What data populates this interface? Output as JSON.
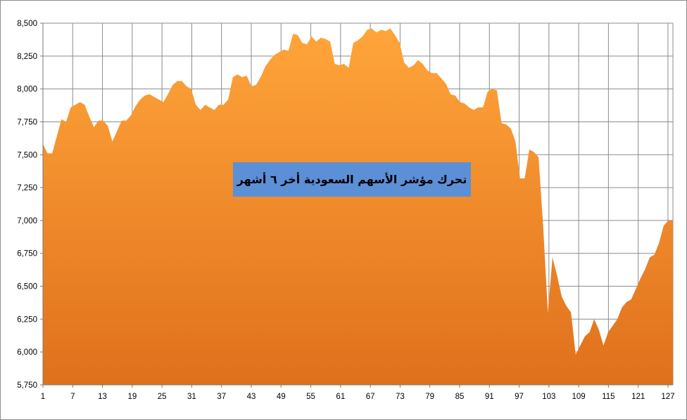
{
  "chart_data": {
    "type": "area",
    "title": "تحرك مؤشر الأسهم السعودية أخر ٦ أشهر",
    "xlabel": "",
    "ylabel": "",
    "ylim": [
      5750,
      8500
    ],
    "yticks": [
      5750,
      6000,
      6250,
      6500,
      6750,
      7000,
      7250,
      7500,
      7750,
      8000,
      8250,
      8500
    ],
    "ytick_labels": [
      "5,750",
      "6,000",
      "6,250",
      "6,500",
      "6,750",
      "7,000",
      "7,250",
      "7,500",
      "7,750",
      "8,000",
      "8,250",
      "8,500"
    ],
    "xlim": [
      1,
      128
    ],
    "xticks": [
      1,
      7,
      13,
      19,
      25,
      31,
      37,
      43,
      49,
      55,
      61,
      67,
      73,
      79,
      85,
      91,
      97,
      103,
      109,
      115,
      121,
      127
    ],
    "grid": true,
    "legend": "none",
    "colors": {
      "fill_top": "#ffa53a",
      "fill_bottom": "#e0701c",
      "grid": "#8c8c8c",
      "title_box": "#5b8fd6"
    },
    "series": [
      {
        "values": [
          7580,
          7510,
          7510,
          7640,
          7770,
          7750,
          7860,
          7880,
          7900,
          7880,
          7790,
          7710,
          7760,
          7760,
          7720,
          7600,
          7680,
          7760,
          7760,
          7800,
          7870,
          7920,
          7950,
          7960,
          7940,
          7920,
          7900,
          7960,
          8030,
          8060,
          8060,
          8020,
          8000,
          7880,
          7840,
          7880,
          7860,
          7840,
          7880,
          7880,
          7920,
          8090,
          8110,
          8090,
          8100,
          8020,
          8030,
          8090,
          8170,
          8220,
          8260,
          8280,
          8300,
          8290,
          8420,
          8410,
          8350,
          8340,
          8400,
          8360,
          8390,
          8380,
          8360,
          8190,
          8180,
          8190,
          8160,
          8350,
          8370,
          8400,
          8450,
          8460,
          8430,
          8450,
          8440,
          8460,
          8410,
          8350,
          8200,
          8160,
          8180,
          8220,
          8190,
          8140,
          8120,
          8120,
          8080,
          8040,
          7960,
          7950,
          7900,
          7890,
          7860,
          7840,
          7860,
          7860,
          7980,
          8000,
          7990,
          7740,
          7730,
          7700,
          7600,
          7320,
          7320,
          7540,
          7520,
          7480,
          6950,
          6300,
          6720,
          6580,
          6420,
          6350,
          6300,
          5980,
          6050,
          6120,
          6150,
          6250,
          6170,
          6050,
          6150,
          6200,
          6250,
          6340,
          6380,
          6400,
          6480,
          6560,
          6630,
          6720,
          6740,
          6830,
          6960,
          7000,
          7000
        ]
      }
    ]
  }
}
